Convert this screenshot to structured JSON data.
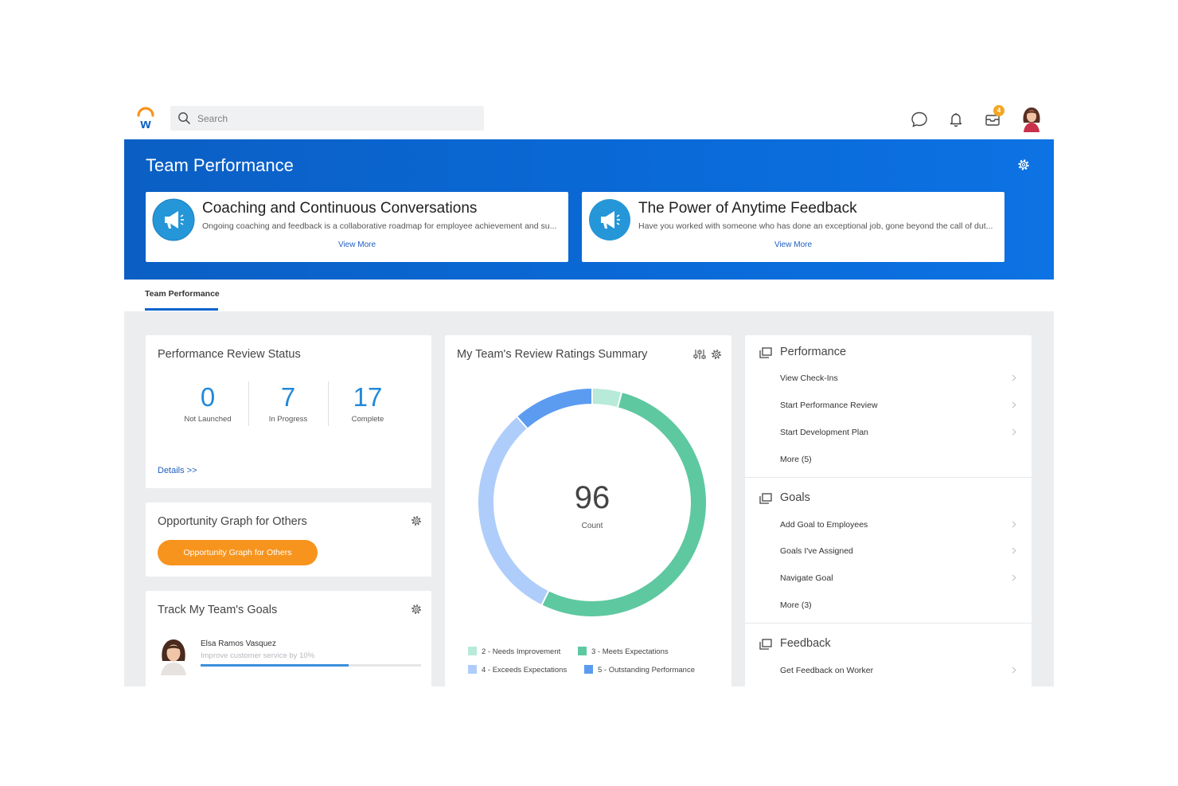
{
  "topbar": {
    "search_placeholder": "Search",
    "notification_badge": "4",
    "icons": [
      "workday-logo",
      "search-icon",
      "chat-icon",
      "bell-icon",
      "inbox-icon",
      "user-avatar"
    ]
  },
  "banner": {
    "title": "Team Performance",
    "cards": [
      {
        "title": "Coaching and Continuous Conversations",
        "description": "Ongoing coaching and feedback is a collaborative roadmap for employee achievement and su...",
        "link": "View More"
      },
      {
        "title": "The Power of Anytime Feedback",
        "description": "Have you worked with someone who has done an exceptional job, gone beyond the call of dut...",
        "link": "View More"
      }
    ]
  },
  "tabs": {
    "active": "Team Performance"
  },
  "review_status": {
    "title": "Performance Review Status",
    "stats": [
      {
        "value": "0",
        "label": "Not Launched"
      },
      {
        "value": "7",
        "label": "In Progress"
      },
      {
        "value": "17",
        "label": "Complete"
      }
    ],
    "details_link": "Details >>"
  },
  "opportunity": {
    "title": "Opportunity Graph for Others",
    "button": "Opportunity Graph for Others"
  },
  "team_goals": {
    "title": "Track My Team's Goals",
    "person": "Elsa Ramos Vasquez",
    "goal": "Improve customer service by 10%",
    "progress": 0.67
  },
  "ratings": {
    "title": "My Team's Review Ratings Summary",
    "total": "96",
    "total_label": "Count",
    "segments": [
      {
        "label": "2 - Needs Improvement",
        "value": 4,
        "color": "#b7ead8"
      },
      {
        "label": "3 - Meets Expectations",
        "value": 51,
        "color": "#5ec8a1"
      },
      {
        "label": "4 - Exceeds Expectations",
        "value": 30,
        "color": "#aecdfa"
      },
      {
        "label": "5 - Outstanding Performance",
        "value": 11,
        "color": "#5b9bf0"
      }
    ]
  },
  "actions": {
    "sections": [
      {
        "title": "Performance",
        "items": [
          "View Check-Ins",
          "Start Performance Review",
          "Start Development Plan",
          "More (5)"
        ]
      },
      {
        "title": "Goals",
        "items": [
          "Add Goal to Employees",
          "Goals I've Assigned",
          "Navigate Goal",
          "More (3)"
        ]
      },
      {
        "title": "Feedback",
        "items": [
          "Get Feedback on Worker"
        ]
      }
    ]
  }
}
